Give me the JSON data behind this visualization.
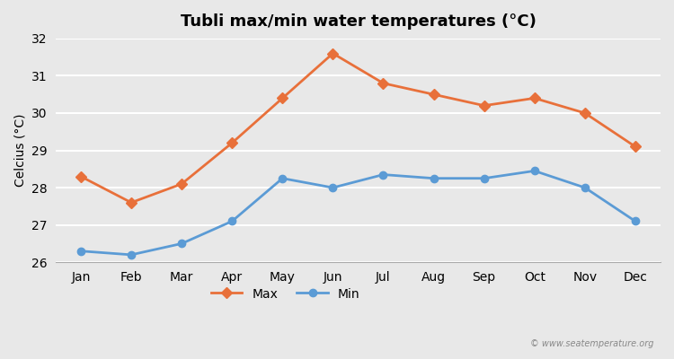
{
  "title": "Tubli max/min water temperatures (°C)",
  "ylabel": "Celcius (°C)",
  "months": [
    "Jan",
    "Feb",
    "Mar",
    "Apr",
    "May",
    "Jun",
    "Jul",
    "Aug",
    "Sep",
    "Oct",
    "Nov",
    "Dec"
  ],
  "max_temps": [
    28.3,
    27.6,
    28.1,
    29.2,
    30.4,
    31.6,
    30.8,
    30.5,
    30.2,
    30.4,
    30.0,
    29.1
  ],
  "min_temps": [
    26.3,
    26.2,
    26.5,
    27.1,
    28.25,
    28.0,
    28.35,
    28.25,
    28.25,
    28.45,
    28.0,
    27.1
  ],
  "max_color": "#e8703a",
  "min_color": "#5b9bd5",
  "bg_color": "#e8e8e8",
  "plot_bg_color": "#e8e8e8",
  "grid_color": "#ffffff",
  "ylim": [
    26.0,
    32.0
  ],
  "yticks": [
    26,
    27,
    28,
    29,
    30,
    31,
    32
  ],
  "watermark": "© www.seatemperature.org",
  "legend_max": "Max",
  "legend_min": "Min"
}
